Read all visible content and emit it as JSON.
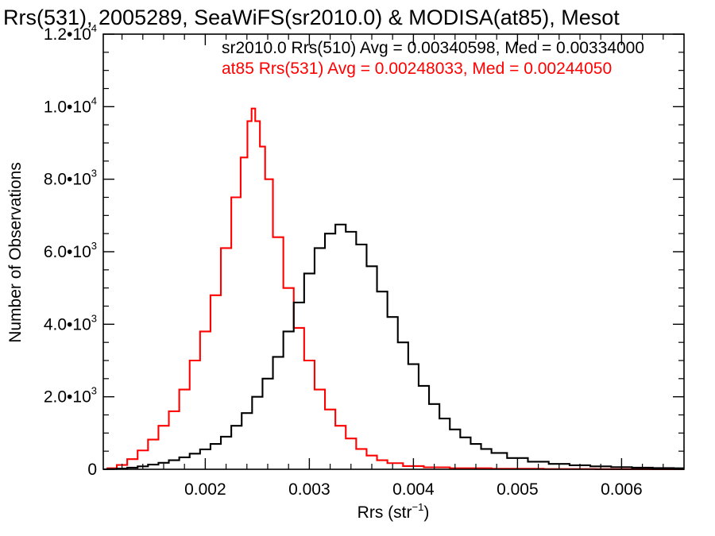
{
  "chart_data": {
    "type": "line",
    "step": true,
    "title": "Rrs(531), 2005289, SeaWiFS(sr2010.0) & MODISA(at85), Mesot",
    "xlabel": {
      "main": "Rrs (str",
      "sup": "−1",
      "close": ")"
    },
    "ylabel": "Number of Observations",
    "xlim": [
      0.00102,
      0.0066
    ],
    "ylim": [
      0,
      12000
    ],
    "grid": false,
    "x_ticks": [
      {
        "value": 0.002,
        "label": "0.002"
      },
      {
        "value": 0.003,
        "label": "0.003"
      },
      {
        "value": 0.004,
        "label": "0.004"
      },
      {
        "value": 0.005,
        "label": "0.005"
      },
      {
        "value": 0.006,
        "label": "0.006"
      }
    ],
    "y_ticks": [
      {
        "value": 0,
        "mant": "0",
        "exp": ""
      },
      {
        "value": 2000,
        "mant": "2.0•10",
        "exp": "3"
      },
      {
        "value": 4000,
        "mant": "4.0•10",
        "exp": "3"
      },
      {
        "value": 6000,
        "mant": "6.0•10",
        "exp": "3"
      },
      {
        "value": 8000,
        "mant": "8.0•10",
        "exp": "3"
      },
      {
        "value": 10000,
        "mant": "1.0•10",
        "exp": "4"
      },
      {
        "value": 12000,
        "mant": "1.2•10",
        "exp": "4"
      }
    ],
    "legend": [
      {
        "text": "sr2010.0 Rrs(510) Avg = 0.00340598, Med = 0.00334000",
        "color": "#000000"
      },
      {
        "text": "at85 Rrs(531) Avg = 0.00248033, Med = 0.00244050",
        "color": "#ff0000"
      }
    ],
    "legend_position": "top-right",
    "series": [
      {
        "color": "#ff0000",
        "points": [
          [
            0.00102,
            0
          ],
          [
            0.0011,
            30
          ],
          [
            0.0012,
            120
          ],
          [
            0.0013,
            280
          ],
          [
            0.0014,
            520
          ],
          [
            0.0015,
            820
          ],
          [
            0.0016,
            1200
          ],
          [
            0.0017,
            1600
          ],
          [
            0.0018,
            2200
          ],
          [
            0.0019,
            3000
          ],
          [
            0.002,
            3800
          ],
          [
            0.0021,
            4800
          ],
          [
            0.0022,
            6100
          ],
          [
            0.0023,
            7500
          ],
          [
            0.00238,
            8600
          ],
          [
            0.00243,
            9600
          ],
          [
            0.00246,
            9950
          ],
          [
            0.0025,
            9600
          ],
          [
            0.00255,
            8900
          ],
          [
            0.0026,
            8000
          ],
          [
            0.0027,
            6400
          ],
          [
            0.0028,
            5000
          ],
          [
            0.0029,
            3900
          ],
          [
            0.003,
            3000
          ],
          [
            0.0031,
            2200
          ],
          [
            0.0032,
            1650
          ],
          [
            0.0033,
            1200
          ],
          [
            0.0034,
            850
          ],
          [
            0.0035,
            560
          ],
          [
            0.0036,
            380
          ],
          [
            0.0037,
            250
          ],
          [
            0.0038,
            170
          ],
          [
            0.004,
            90
          ],
          [
            0.0042,
            55
          ],
          [
            0.0045,
            30
          ],
          [
            0.005,
            15
          ],
          [
            0.0055,
            8
          ],
          [
            0.006,
            4
          ],
          [
            0.0066,
            1
          ]
        ]
      },
      {
        "color": "#000000",
        "points": [
          [
            0.00102,
            0
          ],
          [
            0.0011,
            8
          ],
          [
            0.0012,
            20
          ],
          [
            0.0013,
            45
          ],
          [
            0.0014,
            80
          ],
          [
            0.0015,
            130
          ],
          [
            0.0016,
            180
          ],
          [
            0.0017,
            250
          ],
          [
            0.0018,
            330
          ],
          [
            0.0019,
            430
          ],
          [
            0.002,
            550
          ],
          [
            0.0021,
            700
          ],
          [
            0.0022,
            900
          ],
          [
            0.0023,
            1200
          ],
          [
            0.0024,
            1550
          ],
          [
            0.0025,
            2000
          ],
          [
            0.0026,
            2500
          ],
          [
            0.0027,
            3100
          ],
          [
            0.0028,
            3800
          ],
          [
            0.0029,
            4600
          ],
          [
            0.003,
            5400
          ],
          [
            0.0031,
            6100
          ],
          [
            0.0032,
            6500
          ],
          [
            0.0033,
            6750
          ],
          [
            0.0034,
            6550
          ],
          [
            0.0035,
            6200
          ],
          [
            0.0036,
            5600
          ],
          [
            0.0037,
            4900
          ],
          [
            0.0038,
            4200
          ],
          [
            0.0039,
            3500
          ],
          [
            0.004,
            2900
          ],
          [
            0.0041,
            2300
          ],
          [
            0.0042,
            1800
          ],
          [
            0.0043,
            1400
          ],
          [
            0.0044,
            1100
          ],
          [
            0.0045,
            880
          ],
          [
            0.0046,
            700
          ],
          [
            0.0047,
            560
          ],
          [
            0.0048,
            450
          ],
          [
            0.005,
            310
          ],
          [
            0.0052,
            210
          ],
          [
            0.0054,
            150
          ],
          [
            0.0056,
            110
          ],
          [
            0.0058,
            80
          ],
          [
            0.006,
            60
          ],
          [
            0.0062,
            45
          ],
          [
            0.0064,
            35
          ],
          [
            0.0066,
            30
          ]
        ]
      }
    ]
  }
}
